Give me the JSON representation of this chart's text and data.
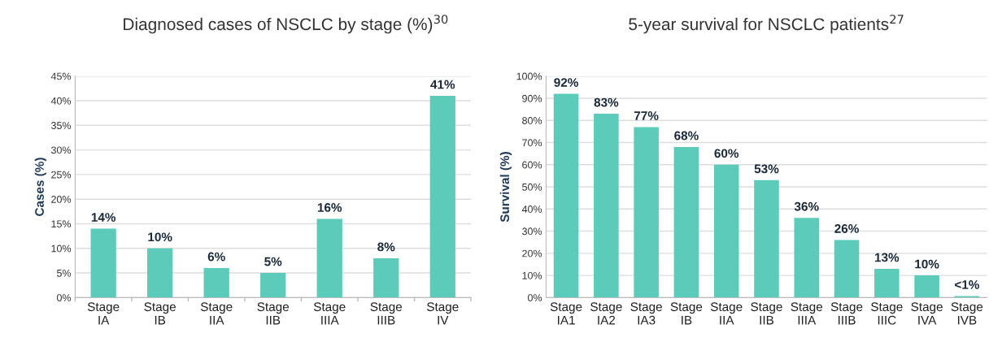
{
  "chart_data": [
    {
      "type": "bar",
      "title": "Diagnosed cases of NSCLC by stage (%)$^{30}$",
      "ylabel": "Cases (%)",
      "categories": [
        "Stage\nIA",
        "Stage\nIB",
        "Stage\nIIA",
        "Stage\nIIB",
        "Stage\nIIIA",
        "Stage\nIIIB",
        "Stage\nIV"
      ],
      "values": [
        14,
        10,
        6,
        5,
        16,
        8,
        41
      ],
      "color": "#5ccbb9",
      "value_labels": [
        "14%",
        "10%",
        "6%",
        "5%",
        "16%",
        "8%",
        "41%"
      ],
      "ylim": [
        0,
        45
      ],
      "yticks": [
        {
          "value": 0,
          "label": "0%"
        },
        {
          "value": 5,
          "label": "5%"
        },
        {
          "value": 10,
          "label": "10%"
        },
        {
          "value": 15,
          "label": "15%"
        },
        {
          "value": 20,
          "label": "20%"
        },
        {
          "value": 25,
          "label": "25%"
        },
        {
          "value": 30,
          "label": "30%"
        },
        {
          "value": 35,
          "label": "35%"
        },
        {
          "value": 40,
          "label": "40%"
        },
        {
          "value": 45,
          "label": "45%"
        }
      ],
      "grid": "y"
    },
    {
      "type": "bar",
      "title": "5-year survival for NSCLC patients$^{27}$",
      "ylabel": "Survival (%)",
      "categories": [
        "Stage\nIA1",
        "Stage\nIA2",
        "Stage\nIA3",
        "Stage\nIB",
        "Stage\nIIA",
        "Stage\nIIB",
        "Stage\nIIIA",
        "Stage\nIIIB",
        "Stage\nIIIC",
        "Stage\nIVA",
        "Stage\nIVB"
      ],
      "values": [
        92,
        83,
        77,
        68,
        60,
        53,
        36,
        26,
        13,
        10,
        0.7
      ],
      "color": "#5ccbb9",
      "value_labels": [
        "92%",
        "83%",
        "77%",
        "68%",
        "60%",
        "53%",
        "36%",
        "26%",
        "13%",
        "10%",
        "<1%"
      ],
      "ylim": [
        0,
        100
      ],
      "yticks": [
        {
          "value": 0,
          "label": "0%"
        },
        {
          "value": 10,
          "label": "10%"
        },
        {
          "value": 20,
          "label": "20%"
        },
        {
          "value": 30,
          "label": "30%"
        },
        {
          "value": 40,
          "label": "40%"
        },
        {
          "value": 50,
          "label": "50%"
        },
        {
          "value": 60,
          "label": "60%"
        },
        {
          "value": 70,
          "label": "70%"
        },
        {
          "value": 80,
          "label": "80%"
        },
        {
          "value": 90,
          "label": "90%"
        },
        {
          "value": 100,
          "label": "100%"
        }
      ],
      "grid": "y"
    }
  ]
}
